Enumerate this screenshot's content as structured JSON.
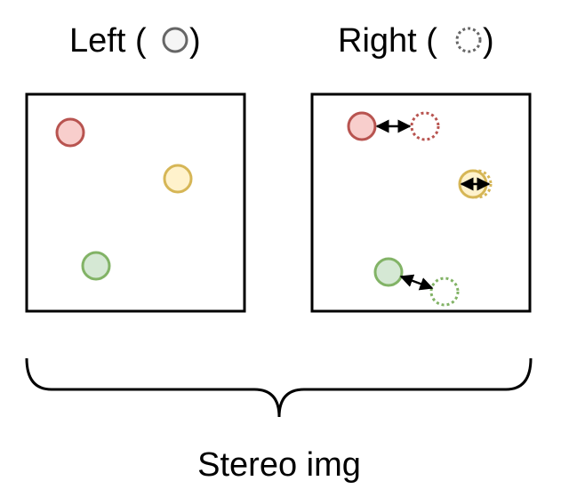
{
  "left_panel": {
    "title_prefix": "Left (",
    "title_suffix": ")",
    "legend_symbol": "solid-circle-icon"
  },
  "right_panel": {
    "title_prefix": "Right (",
    "title_suffix": ")",
    "legend_symbol": "dotted-circle-icon"
  },
  "caption": "Stereo img",
  "colors": {
    "red_fill": "#f8cecc",
    "red_stroke": "#b85450",
    "yellow_fill": "#fff2cc",
    "yellow_stroke": "#d6b656",
    "green_fill": "#d5e8d4",
    "green_stroke": "#82b366",
    "legend_stroke": "#666666",
    "legend_fill": "#f5f5f5"
  }
}
